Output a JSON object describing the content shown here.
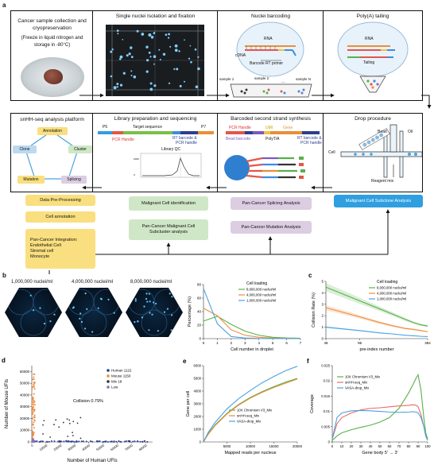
{
  "panel_a": {
    "letter": "a",
    "box1": {
      "title": "Cancer sample collection and cryopreservation",
      "note": "(Freeze in liquid nitrogen and storage in -80°C)"
    },
    "box2": {
      "title": "Single nuclei Isolation and fixation"
    },
    "box3": {
      "title": "Nuclei barcoding",
      "rna": "RNA",
      "cdna": "cDNA",
      "primer": "Barcode RT primer",
      "samples": [
        "sample 1",
        "sample 2",
        "sample N"
      ],
      "dots": "..."
    },
    "box4": {
      "title": "Poly(A) tailing",
      "rna": "RNA",
      "tailing": "Tailing"
    },
    "box5": {
      "title": "snHH-seq analysis platform",
      "nodes": [
        "Annotation",
        "Clone",
        "Cluster",
        "Mutation",
        "Splicing"
      ]
    },
    "box6": {
      "title": "Library preparation and sequencing",
      "p5": "P5",
      "target": "Target sequence",
      "p7": "P7",
      "pcr": "PCR Handle",
      "rt": "RT barcode &",
      "rt2": "PCR handle",
      "qc": "Library QC"
    },
    "box7": {
      "title": "Barcoded second strand synthesis",
      "pcr": "PCR Handle",
      "umi": "UMI",
      "gene": "Gene",
      "bead": "Bead barcode",
      "polyt": "PolyT/A",
      "rt": "RT barcode &",
      "rt2": "PCR handle"
    },
    "box8": {
      "title": "Drop procedure",
      "bead": "Bead",
      "oil": "Oil",
      "cell": "Cell",
      "reagent": "Reagent mix"
    },
    "outputs": {
      "y1": "Data Pre-Processing",
      "y2": "Cell annotation",
      "y3": [
        "Pan-Cancer Integration:",
        "Endothelial Cell",
        "Stromal cell",
        "Monocyte"
      ],
      "g1": "Malignant Cell identification",
      "g2": [
        "Pan-Cancer Malignant Cell",
        "Subcluster analysis"
      ],
      "p1": "Pan-Cancer Splicing Analysis",
      "p2": "Pan-Cancer Mutation Analysis",
      "b1": "Malignant Cell Subclone Analysis"
    }
  },
  "panel_b": {
    "letter": "b",
    "images": [
      "1,000,000 nuclei/ml",
      "4,000,000 nuclei/ml",
      "8,000,000 nuclei/ml"
    ]
  },
  "colors": {
    "green": "#59b04a",
    "orange": "#f08a3a",
    "blue": "#4aa3df",
    "navy": "#2b3f8c",
    "yellow": "#f9df7f"
  },
  "chart_data": [
    {
      "id": "b-dist",
      "type": "line",
      "xlabel": "Cell number in droplet",
      "ylabel": "Percentage (%)",
      "xlim": [
        0,
        7
      ],
      "ylim": [
        0,
        80
      ],
      "xticks": [
        0,
        1,
        2,
        3,
        4,
        5,
        6,
        7
      ],
      "yticks": [
        0,
        20,
        40,
        60,
        80
      ],
      "legend_title": "Cell loading",
      "x": [
        0,
        1,
        2,
        3,
        4,
        5,
        6,
        7
      ],
      "series": [
        {
          "name": "8,000,000 nuclei/ml",
          "color": "#59b04a",
          "values": [
            26,
            33,
            21,
            11,
            5,
            2,
            1,
            0.5
          ]
        },
        {
          "name": "4,000,000 nuclei/ml",
          "color": "#f08a3a",
          "values": [
            45,
            34,
            13,
            5,
            2,
            0.8,
            0.3,
            0.1
          ]
        },
        {
          "name": "1,000,000 nuclei/ml",
          "color": "#4aa3df",
          "values": [
            74,
            22,
            3,
            1,
            0.3,
            0.1,
            0,
            0
          ]
        }
      ]
    },
    {
      "id": "c-collision",
      "type": "line",
      "letter": "c",
      "xlabel": "pre-index number",
      "ylabel": "Collision Rate (%)",
      "xlim": [
        48,
        384
      ],
      "ylim": [
        0,
        5
      ],
      "xticks": [
        48,
        96,
        384
      ],
      "yticks": [
        0,
        1,
        2,
        3,
        4,
        5
      ],
      "legend_title": "Cell loading",
      "x": [
        48,
        96,
        144,
        192,
        240,
        288,
        336,
        384
      ],
      "series": [
        {
          "name": "8,000,000 nuclei/ml",
          "color": "#59b04a",
          "values": [
            4.5,
            3.3,
            2.6,
            2.1,
            1.7,
            1.4,
            1.2,
            1.1
          ]
        },
        {
          "name": "4,000,000 nuclei/ml",
          "color": "#f08a3a",
          "values": [
            2.7,
            1.9,
            1.4,
            1.1,
            0.9,
            0.8,
            0.7,
            0.6
          ]
        },
        {
          "name": "1,000,000 nuclei/ml",
          "color": "#4aa3df",
          "values": [
            1.0,
            0.7,
            0.5,
            0.4,
            0.3,
            0.25,
            0.2,
            0.18
          ]
        }
      ]
    },
    {
      "id": "d-barnyard",
      "type": "scatter",
      "letter": "d",
      "xlabel": "Number of Human UFIs",
      "ylabel": "Number of Mouse UFIs",
      "xlim": [
        0,
        85000
      ],
      "ylim": [
        0,
        65000
      ],
      "xticks": [
        0,
        10000,
        20000,
        30000,
        40000,
        50000,
        60000,
        70000,
        80000
      ],
      "yticks": [
        0,
        10000,
        20000,
        30000,
        40000,
        50000,
        60000
      ],
      "annotation": "Collision 0.79%",
      "legend": [
        {
          "name": "Human 1122",
          "color": "#2b3f8c"
        },
        {
          "name": "Mouse 1150",
          "color": "#f08a3a"
        },
        {
          "name": "Mix 18",
          "color": "#333333"
        },
        {
          "name": "Low",
          "color": "#8a6fc0"
        }
      ]
    },
    {
      "id": "e-saturation",
      "type": "line",
      "letter": "e",
      "xlabel": "Mapped reads per nucleus",
      "ylabel": "Gene per cell",
      "xlim": [
        0,
        20000
      ],
      "ylim": [
        0,
        6000
      ],
      "xticks": [
        5000,
        10000,
        15000,
        20000
      ],
      "yticks": [
        0,
        1000,
        2000,
        3000,
        4000,
        5000,
        6000
      ],
      "x": [
        0,
        1000,
        2500,
        5000,
        7500,
        10000,
        12500,
        15000,
        17500,
        20000
      ],
      "series": [
        {
          "name": "10X Chromium V3_Mix",
          "color": "#59b04a",
          "values": [
            0,
            650,
            1350,
            2250,
            2950,
            3500,
            3950,
            4350,
            4700,
            5000
          ]
        },
        {
          "name": "snHH-seq_Mix",
          "color": "#f08a3a",
          "values": [
            0,
            600,
            1300,
            2200,
            2900,
            3450,
            3900,
            4280,
            4620,
            4950
          ]
        },
        {
          "name": "VASA-drop_Mix",
          "color": "#4aa3df",
          "values": [
            0,
            750,
            1550,
            2600,
            3400,
            4050,
            4650,
            5150,
            5600,
            5950
          ]
        }
      ]
    },
    {
      "id": "f-coverage",
      "type": "line",
      "letter": "f",
      "xlabel": "Gene body 5' → 3'",
      "ylabel": "Coverage",
      "xlim": [
        0,
        100
      ],
      "ylim": [
        0,
        0.025
      ],
      "xticks": [
        0,
        10,
        20,
        30,
        40,
        50,
        60,
        70,
        80,
        90,
        100
      ],
      "yticks": [
        0,
        0.005,
        0.01,
        0.015,
        0.02,
        0.025
      ],
      "x": [
        0,
        5,
        10,
        20,
        30,
        40,
        50,
        60,
        70,
        80,
        85,
        88,
        90,
        93,
        96,
        98,
        100
      ],
      "series": [
        {
          "name": "10X Chromium V3_Mix",
          "color": "#59b04a",
          "values": [
            0.0005,
            0.002,
            0.003,
            0.004,
            0.0048,
            0.0055,
            0.0065,
            0.008,
            0.011,
            0.016,
            0.019,
            0.021,
            0.022,
            0.017,
            0.008,
            0.003,
            0.001
          ]
        },
        {
          "name": "snHH-seq_Mix",
          "color": "#e86a6a",
          "values": [
            0.001,
            0.006,
            0.008,
            0.0095,
            0.0105,
            0.011,
            0.0112,
            0.0115,
            0.0118,
            0.012,
            0.0122,
            0.012,
            0.0115,
            0.009,
            0.005,
            0.002,
            0.0005
          ]
        },
        {
          "name": "VASA-drop_Mix",
          "color": "#4aa3df",
          "values": [
            0.001,
            0.008,
            0.0095,
            0.0102,
            0.0103,
            0.0102,
            0.01,
            0.0098,
            0.0097,
            0.0098,
            0.0099,
            0.0098,
            0.0095,
            0.008,
            0.005,
            0.002,
            0.0005
          ]
        }
      ]
    }
  ]
}
